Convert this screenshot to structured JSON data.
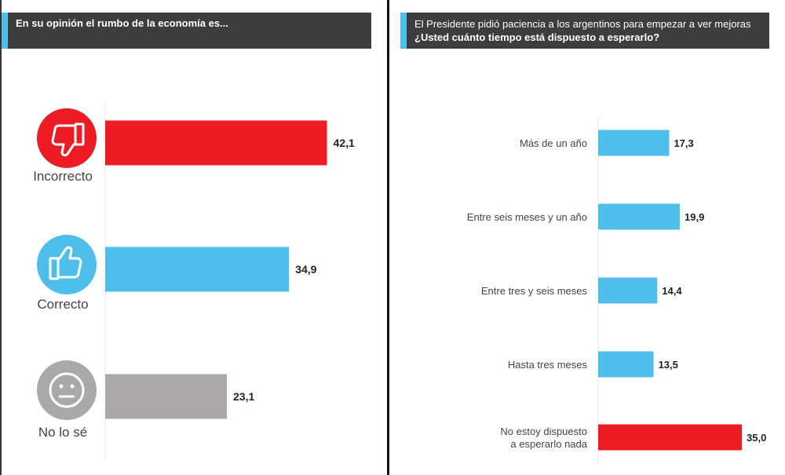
{
  "colors": {
    "red": "#ed1c24",
    "blue": "#4dbfea",
    "gray": "#aaa8a8",
    "header_bg": "#3d3d3d",
    "accent": "#4dbfea"
  },
  "left": {
    "title": "En su opinión el rumbo de la economía es...",
    "icons": [
      {
        "label": "Incorrecto",
        "icon": "thumbs-down-icon"
      },
      {
        "label": "Correcto",
        "icon": "thumbs-up-icon"
      },
      {
        "label": "No lo sé",
        "icon": "neutral-face-icon"
      }
    ]
  },
  "right": {
    "title_plain": "El Presidente pidió paciencia a los argentinos para empezar a ver mejoras",
    "title_bold": "¿Usted cuánto tiempo está dispuesto a esperarlo?"
  },
  "chart_data": [
    {
      "type": "bar",
      "orientation": "horizontal",
      "title": "En su opinión el rumbo de la economía es...",
      "categories": [
        "Incorrecto",
        "Correcto",
        "No lo sé"
      ],
      "values": [
        42.1,
        34.9,
        23.1
      ],
      "value_labels": [
        "42,1",
        "34,9",
        "23,1"
      ],
      "colors": [
        "#ed1c24",
        "#4dbfea",
        "#aaa8a8"
      ],
      "xlim": [
        0,
        45
      ]
    },
    {
      "type": "bar",
      "orientation": "horizontal",
      "title": "El Presidente pidió paciencia a los argentinos para empezar a ver mejoras ¿Usted cuánto tiempo está dispuesto a esperarlo?",
      "categories": [
        "Más de un año",
        "Entre seis meses y un año",
        "Entre tres y seis meses",
        "Hasta tres meses",
        "No estoy dispuesto a esperarlo nada"
      ],
      "category_lines": [
        [
          "Más de un año"
        ],
        [
          "Entre seis meses y un año"
        ],
        [
          "Entre tres y seis meses"
        ],
        [
          "Hasta tres meses"
        ],
        [
          "No estoy dispuesto",
          "a esperarlo nada"
        ]
      ],
      "values": [
        17.3,
        19.9,
        14.4,
        13.5,
        35.0
      ],
      "value_labels": [
        "17,3",
        "19,9",
        "14,4",
        "13,5",
        "35,0"
      ],
      "colors": [
        "#4dbfea",
        "#4dbfea",
        "#4dbfea",
        "#4dbfea",
        "#ed1c24"
      ],
      "xlim": [
        0,
        38
      ]
    }
  ]
}
